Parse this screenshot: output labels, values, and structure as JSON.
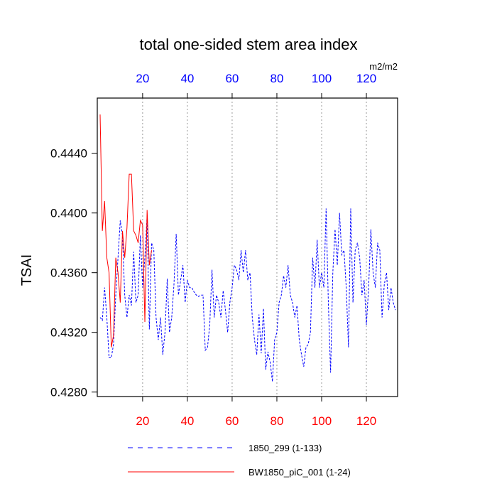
{
  "chart_data": {
    "type": "line",
    "title": "total one-sided stem area index",
    "ylabel": "TSAI",
    "units": "m2/m2",
    "xlim": [
      1,
      133
    ],
    "xticks": [
      20,
      40,
      60,
      80,
      100,
      120
    ],
    "xtick_color": "#ff0000",
    "x2ticks": [
      20,
      40,
      60,
      80,
      100,
      120
    ],
    "x2tick_color": "#0000ff",
    "ylim": [
      0.4277,
      0.4477
    ],
    "yticks": [
      {
        "value": 0.428,
        "label": "0.4280"
      },
      {
        "value": 0.432,
        "label": "0.4320"
      },
      {
        "value": 0.436,
        "label": "0.4360"
      },
      {
        "value": 0.44,
        "label": "0.4400"
      },
      {
        "value": 0.444,
        "label": "0.4440"
      }
    ],
    "grid": true,
    "series": [
      {
        "name": "1850_299 (1-133)",
        "color": "#0000ff",
        "dash": true,
        "x": [
          1,
          2,
          3,
          4,
          5,
          6,
          7,
          8,
          9,
          10,
          11,
          12,
          13,
          14,
          15,
          16,
          17,
          18,
          19,
          20,
          21,
          22,
          23,
          24,
          25,
          26,
          27,
          28,
          29,
          30,
          31,
          32,
          33,
          34,
          35,
          36,
          37,
          38,
          39,
          40,
          41,
          42,
          43,
          44,
          45,
          46,
          47,
          48,
          49,
          50,
          51,
          52,
          53,
          54,
          55,
          56,
          57,
          58,
          59,
          60,
          61,
          62,
          63,
          64,
          65,
          66,
          67,
          68,
          69,
          70,
          71,
          72,
          73,
          74,
          75,
          76,
          77,
          78,
          79,
          80,
          81,
          82,
          83,
          84,
          85,
          86,
          87,
          88,
          89,
          90,
          91,
          92,
          93,
          94,
          95,
          96,
          97,
          98,
          99,
          100,
          101,
          102,
          103,
          104,
          105,
          106,
          107,
          108,
          109,
          110,
          111,
          112,
          113,
          114,
          115,
          116,
          117,
          118,
          119,
          120,
          121,
          122,
          123,
          124,
          125,
          126,
          127,
          128,
          129,
          130,
          131,
          132,
          133
        ],
        "values": [
          0.433,
          0.4328,
          0.435,
          0.433,
          0.4303,
          0.4303,
          0.4312,
          0.4345,
          0.437,
          0.4395,
          0.4385,
          0.4345,
          0.433,
          0.4345,
          0.4338,
          0.4374,
          0.434,
          0.4345,
          0.4385,
          0.435,
          0.437,
          0.4398,
          0.4322,
          0.438,
          0.4375,
          0.433,
          0.4315,
          0.433,
          0.4305,
          0.432,
          0.4356,
          0.432,
          0.433,
          0.4352,
          0.4386,
          0.4345,
          0.4355,
          0.4365,
          0.434,
          0.4355,
          0.435,
          0.435,
          0.4347,
          0.4345,
          0.4344,
          0.4345,
          0.4345,
          0.4308,
          0.431,
          0.4325,
          0.4362,
          0.433,
          0.4345,
          0.434,
          0.433,
          0.4348,
          0.4335,
          0.432,
          0.434,
          0.435,
          0.4365,
          0.4362,
          0.4355,
          0.4375,
          0.436,
          0.4375,
          0.4355,
          0.436,
          0.433,
          0.4315,
          0.4305,
          0.4332,
          0.4306,
          0.4336,
          0.4295,
          0.4307,
          0.43,
          0.4287,
          0.4315,
          0.432,
          0.434,
          0.4345,
          0.4358,
          0.435,
          0.4365,
          0.4345,
          0.434,
          0.433,
          0.4338,
          0.4315,
          0.4305,
          0.4297,
          0.431,
          0.4312,
          0.432,
          0.437,
          0.435,
          0.4382,
          0.435,
          0.436,
          0.435,
          0.4403,
          0.434,
          0.4293,
          0.436,
          0.4389,
          0.4365,
          0.44,
          0.4372,
          0.4375,
          0.435,
          0.431,
          0.4403,
          0.434,
          0.4375,
          0.438,
          0.437,
          0.4345,
          0.4355,
          0.4325,
          0.435,
          0.4389,
          0.436,
          0.435,
          0.438,
          0.4375,
          0.433,
          0.4352,
          0.436,
          0.4335,
          0.435,
          0.434,
          0.4335
        ]
      },
      {
        "name": "BW1850_piC_001 (1-24)",
        "color": "#ff0000",
        "dash": false,
        "x": [
          1,
          2,
          3,
          4,
          5,
          6,
          7,
          8,
          9,
          10,
          11,
          12,
          13,
          14,
          15,
          16,
          17,
          18,
          19,
          20,
          21,
          22,
          23,
          24
        ],
        "values": [
          0.4466,
          0.4388,
          0.4408,
          0.437,
          0.436,
          0.431,
          0.4318,
          0.437,
          0.436,
          0.434,
          0.4388,
          0.437,
          0.439,
          0.4426,
          0.4426,
          0.4388,
          0.4385,
          0.438,
          0.4395,
          0.4392,
          0.4327,
          0.4402,
          0.4365,
          0.4375
        ]
      }
    ]
  }
}
